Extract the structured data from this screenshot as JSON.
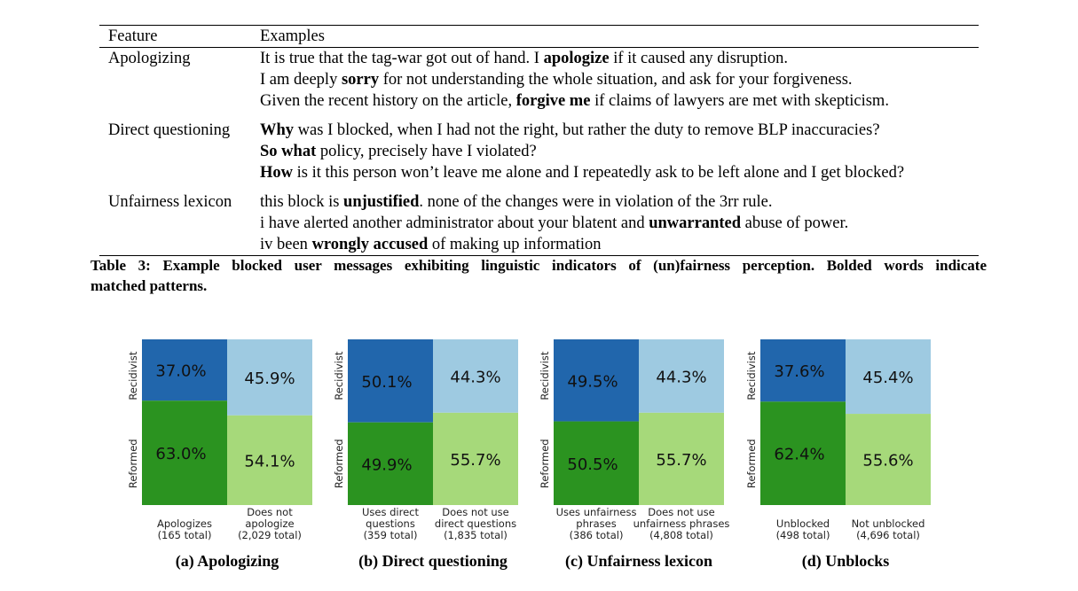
{
  "table": {
    "headers": [
      "Feature",
      "Examples"
    ],
    "rows": [
      {
        "feature": "Apologizing",
        "examples": [
          [
            {
              "t": "It is true that the tag-war got out of hand. I "
            },
            {
              "t": "apologize",
              "b": true
            },
            {
              "t": " if it caused any disruption."
            }
          ],
          [
            {
              "t": "I am deeply "
            },
            {
              "t": "sorry",
              "b": true
            },
            {
              "t": " for not understanding the whole situation, and ask for your forgiveness."
            }
          ],
          [
            {
              "t": "Given the recent history on the article, "
            },
            {
              "t": "forgive me",
              "b": true
            },
            {
              "t": " if claims of lawyers are met with skepticism."
            }
          ]
        ]
      },
      {
        "feature": "Direct questioning",
        "examples": [
          [
            {
              "t": "Why",
              "b": true
            },
            {
              "t": " was I blocked, when I had not the right, but rather the duty to remove BLP inaccuracies?"
            }
          ],
          [
            {
              "t": "So what",
              "b": true
            },
            {
              "t": " policy, precisely have I violated?"
            }
          ],
          [
            {
              "t": "How",
              "b": true
            },
            {
              "t": " is it this person won’t leave me alone and I repeatedly ask to be left alone and I get blocked?"
            }
          ]
        ]
      },
      {
        "feature": "Unfairness lexicon",
        "examples": [
          [
            {
              "t": "this block is "
            },
            {
              "t": "unjustified",
              "b": true
            },
            {
              "t": ". none of the changes were in violation of the 3rr rule."
            }
          ],
          [
            {
              "t": "i have alerted another administrator about your blatent and "
            },
            {
              "t": "unwarranted",
              "b": true
            },
            {
              "t": " abuse of power."
            }
          ],
          [
            {
              "t": "iv been "
            },
            {
              "t": "wrongly accused",
              "b": true
            },
            {
              "t": " of making up information"
            }
          ]
        ]
      }
    ]
  },
  "caption": {
    "line1": "Table 3: Example blocked user messages exhibiting linguistic indicators of (un)fairness perception. Bolded words indicate",
    "line2": "matched patterns."
  },
  "colors": {
    "recidivist_left": "#2166ac",
    "recidivist_right": "#9ecae1",
    "reformed_left": "#2b9320",
    "reformed_right": "#a6d97a"
  },
  "chart_data": [
    {
      "type": "bar",
      "stacked_percent": true,
      "caption": "(a) Apologizing",
      "ylabels": [
        "Recidivist",
        "Reformed"
      ],
      "categories": [
        [
          "Apologizes",
          "(165 total)"
        ],
        [
          "Does not",
          "apologize",
          "(2,029 total)"
        ]
      ],
      "series": [
        {
          "name": "Recidivist",
          "values": [
            37.0,
            45.9
          ],
          "labels": [
            "37.0%",
            "45.9%"
          ]
        },
        {
          "name": "Reformed",
          "values": [
            63.0,
            54.1
          ],
          "labels": [
            "63.0%",
            "54.1%"
          ]
        }
      ]
    },
    {
      "type": "bar",
      "stacked_percent": true,
      "caption": "(b) Direct questioning",
      "ylabels": [
        "Recidivist",
        "Reformed"
      ],
      "categories": [
        [
          "Uses direct",
          "questions",
          "(359 total)"
        ],
        [
          "Does not use",
          "direct questions",
          "(1,835 total)"
        ]
      ],
      "series": [
        {
          "name": "Recidivist",
          "values": [
            50.1,
            44.3
          ],
          "labels": [
            "50.1%",
            "44.3%"
          ]
        },
        {
          "name": "Reformed",
          "values": [
            49.9,
            55.7
          ],
          "labels": [
            "49.9%",
            "55.7%"
          ]
        }
      ]
    },
    {
      "type": "bar",
      "stacked_percent": true,
      "caption": "(c) Unfairness lexicon",
      "ylabels": [
        "Recidivist",
        "Reformed"
      ],
      "categories": [
        [
          "Uses unfairness",
          "phrases",
          "(386 total)"
        ],
        [
          "Does not use",
          "unfairness phrases",
          "(4,808 total)"
        ]
      ],
      "series": [
        {
          "name": "Recidivist",
          "values": [
            49.5,
            44.3
          ],
          "labels": [
            "49.5%",
            "44.3%"
          ]
        },
        {
          "name": "Reformed",
          "values": [
            50.5,
            55.7
          ],
          "labels": [
            "50.5%",
            "55.7%"
          ]
        }
      ]
    },
    {
      "type": "bar",
      "stacked_percent": true,
      "caption": "(d) Unblocks",
      "ylabels": [
        "Recidivist",
        "Reformed"
      ],
      "categories": [
        [
          "Unblocked",
          "(498 total)"
        ],
        [
          "Not unblocked",
          "(4,696 total)"
        ]
      ],
      "series": [
        {
          "name": "Recidivist",
          "values": [
            37.6,
            45.4
          ],
          "labels": [
            "37.6%",
            "45.4%"
          ]
        },
        {
          "name": "Reformed",
          "values": [
            62.4,
            55.6
          ],
          "labels": [
            "62.4%",
            "55.6%"
          ]
        }
      ]
    }
  ]
}
